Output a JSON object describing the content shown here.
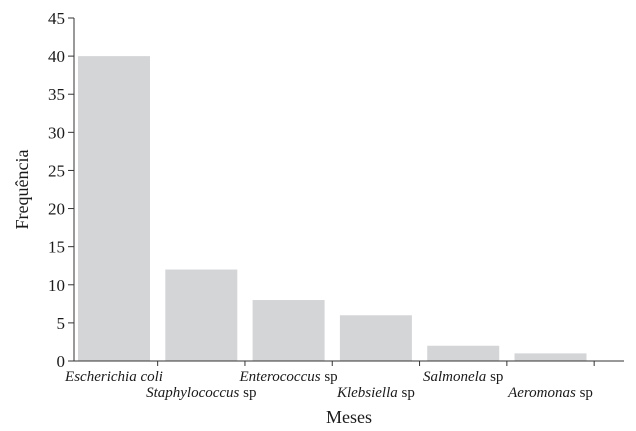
{
  "chart_data": {
    "type": "bar",
    "categories": [
      {
        "italic": "Escherichia coli",
        "suffix": ""
      },
      {
        "italic": "Staphylococcus",
        "suffix": " sp"
      },
      {
        "italic": "Enterococcus",
        "suffix": " sp"
      },
      {
        "italic": "Klebsiella",
        "suffix": " sp"
      },
      {
        "italic": "Salmonela",
        "suffix": " sp"
      },
      {
        "italic": "Aeromonas",
        "suffix": " sp"
      }
    ],
    "values": [
      40,
      12,
      8,
      6,
      2,
      1
    ],
    "xlabel": "Meses",
    "ylabel": "Frequência",
    "ylim": [
      0,
      45
    ],
    "yticks": [
      0,
      5,
      10,
      15,
      20,
      25,
      30,
      35,
      40,
      45
    ],
    "grid": false,
    "bar_color": "#d4d5d7",
    "axis_color": "#333333"
  }
}
